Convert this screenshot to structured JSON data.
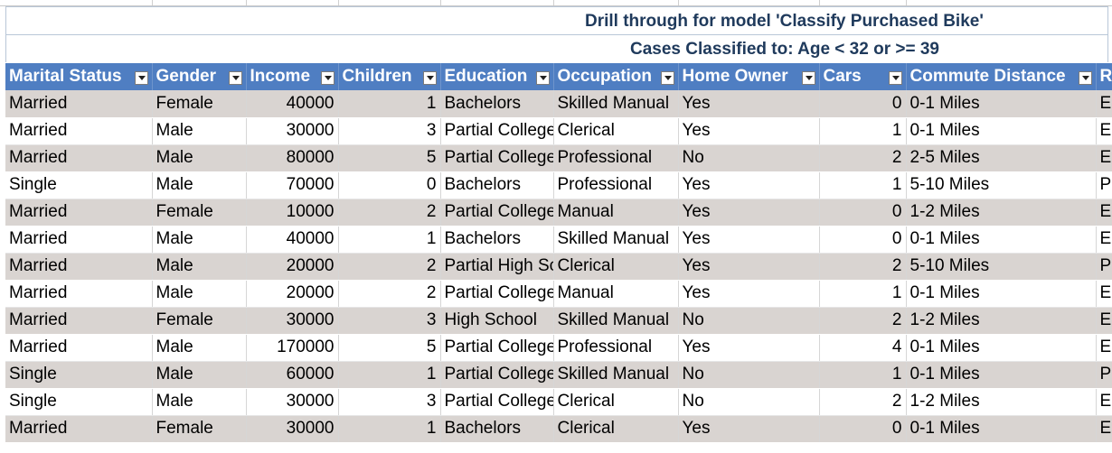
{
  "sheet": {
    "title": "Drill through for model 'Classify Purchased Bike'",
    "subtitle": "Cases Classified to: Age < 32 or >= 39"
  },
  "table": {
    "columns": [
      "Marital Status",
      "Gender",
      "Income",
      "Children",
      "Education",
      "Occupation",
      "Home Owner",
      "Cars",
      "Commute Distance",
      "R"
    ],
    "rows": [
      [
        "Married",
        "Female",
        "40000",
        "1",
        "Bachelors",
        "Skilled Manual",
        "Yes",
        "0",
        "0-1 Miles",
        "E"
      ],
      [
        "Married",
        "Male",
        "30000",
        "3",
        "Partial College",
        "Clerical",
        "Yes",
        "1",
        "0-1 Miles",
        "E"
      ],
      [
        "Married",
        "Male",
        "80000",
        "5",
        "Partial College",
        "Professional",
        "No",
        "2",
        "2-5 Miles",
        "E"
      ],
      [
        "Single",
        "Male",
        "70000",
        "0",
        "Bachelors",
        "Professional",
        "Yes",
        "1",
        "5-10 Miles",
        "P"
      ],
      [
        "Married",
        "Female",
        "10000",
        "2",
        "Partial College",
        "Manual",
        "Yes",
        "0",
        "1-2 Miles",
        "E"
      ],
      [
        "Married",
        "Male",
        "40000",
        "1",
        "Bachelors",
        "Skilled Manual",
        "Yes",
        "0",
        "0-1 Miles",
        "E"
      ],
      [
        "Married",
        "Male",
        "20000",
        "2",
        "Partial High School",
        "Clerical",
        "Yes",
        "2",
        "5-10 Miles",
        "P"
      ],
      [
        "Married",
        "Male",
        "20000",
        "2",
        "Partial College",
        "Manual",
        "Yes",
        "1",
        "0-1 Miles",
        "E"
      ],
      [
        "Married",
        "Female",
        "30000",
        "3",
        "High School",
        "Skilled Manual",
        "No",
        "2",
        "1-2 Miles",
        "E"
      ],
      [
        "Married",
        "Male",
        "170000",
        "5",
        "Partial College",
        "Professional",
        "Yes",
        "4",
        "0-1 Miles",
        "E"
      ],
      [
        "Single",
        "Male",
        "60000",
        "1",
        "Partial College",
        "Skilled Manual",
        "No",
        "1",
        "0-1 Miles",
        "P"
      ],
      [
        "Single",
        "Male",
        "30000",
        "3",
        "Partial College",
        "Clerical",
        "No",
        "2",
        "1-2 Miles",
        "E"
      ],
      [
        "Married",
        "Female",
        "30000",
        "1",
        "Bachelors",
        "Clerical",
        "Yes",
        "0",
        "0-1 Miles",
        "E"
      ]
    ]
  },
  "icons": {
    "filter": "filter-dropdown-icon"
  },
  "colors": {
    "header_bg": "#4f7ec2",
    "title_text": "#1f3a5c",
    "band_row": "#d9d4d1"
  }
}
